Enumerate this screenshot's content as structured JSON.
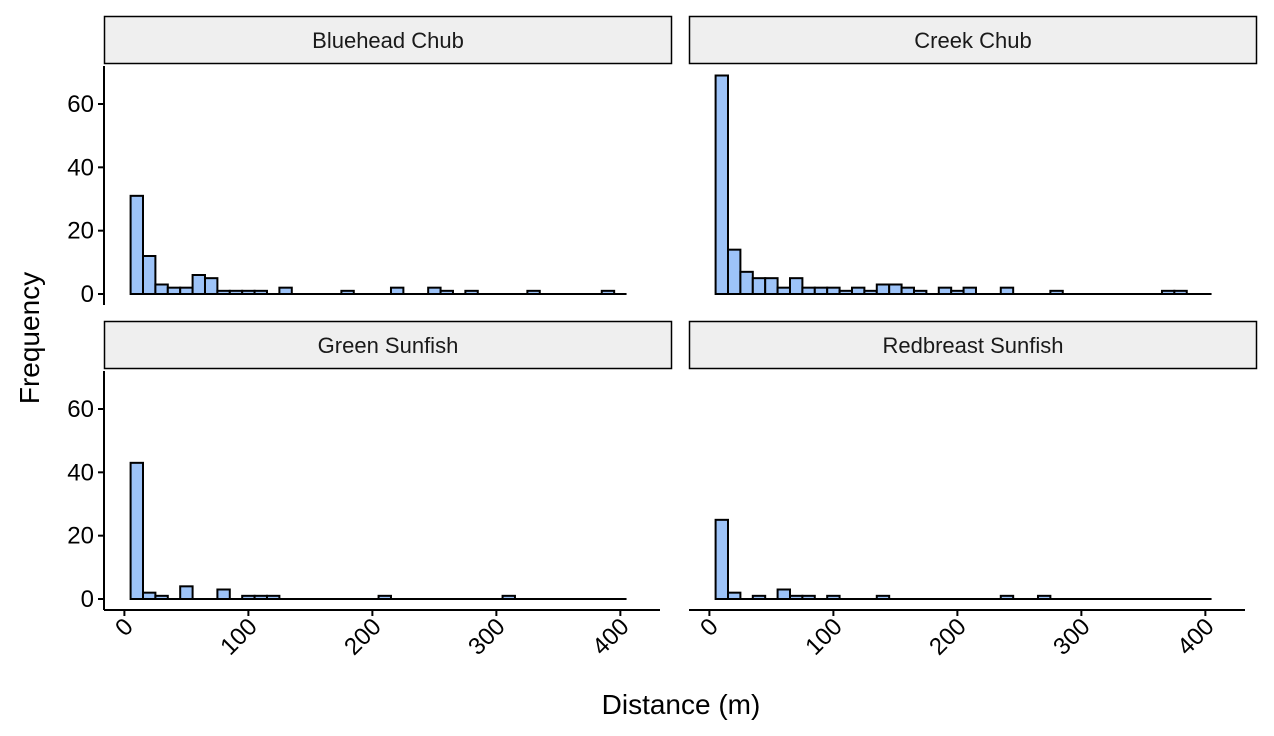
{
  "chart_data": {
    "type": "bar",
    "subtype": "faceted-histogram",
    "xlabel": "Distance (m)",
    "ylabel": "Frequency",
    "xlim": [
      -10,
      400
    ],
    "ylim": [
      0,
      72
    ],
    "x_ticks": [
      0,
      100,
      200,
      300,
      400
    ],
    "y_ticks": [
      0,
      20,
      40,
      60
    ],
    "bin_width": 10,
    "bar_fill": "#9dc3f8",
    "bar_stroke": "#000000",
    "strip_fill": "#efefef",
    "panels": [
      {
        "title": "Bluehead Chub",
        "bins": [
          {
            "x": 10,
            "count": 31
          },
          {
            "x": 20,
            "count": 12
          },
          {
            "x": 30,
            "count": 3
          },
          {
            "x": 40,
            "count": 2
          },
          {
            "x": 50,
            "count": 2
          },
          {
            "x": 60,
            "count": 6
          },
          {
            "x": 70,
            "count": 5
          },
          {
            "x": 80,
            "count": 1
          },
          {
            "x": 90,
            "count": 1
          },
          {
            "x": 100,
            "count": 1
          },
          {
            "x": 110,
            "count": 1
          },
          {
            "x": 130,
            "count": 2
          },
          {
            "x": 180,
            "count": 1
          },
          {
            "x": 220,
            "count": 2
          },
          {
            "x": 250,
            "count": 2
          },
          {
            "x": 260,
            "count": 1
          },
          {
            "x": 280,
            "count": 1
          },
          {
            "x": 330,
            "count": 1
          },
          {
            "x": 390,
            "count": 1
          }
        ]
      },
      {
        "title": "Creek Chub",
        "bins": [
          {
            "x": 10,
            "count": 69
          },
          {
            "x": 20,
            "count": 14
          },
          {
            "x": 30,
            "count": 7
          },
          {
            "x": 40,
            "count": 5
          },
          {
            "x": 50,
            "count": 5
          },
          {
            "x": 60,
            "count": 2
          },
          {
            "x": 70,
            "count": 5
          },
          {
            "x": 80,
            "count": 2
          },
          {
            "x": 90,
            "count": 2
          },
          {
            "x": 100,
            "count": 2
          },
          {
            "x": 110,
            "count": 1
          },
          {
            "x": 120,
            "count": 2
          },
          {
            "x": 130,
            "count": 1
          },
          {
            "x": 140,
            "count": 3
          },
          {
            "x": 150,
            "count": 3
          },
          {
            "x": 160,
            "count": 2
          },
          {
            "x": 170,
            "count": 1
          },
          {
            "x": 190,
            "count": 2
          },
          {
            "x": 200,
            "count": 1
          },
          {
            "x": 210,
            "count": 2
          },
          {
            "x": 240,
            "count": 2
          },
          {
            "x": 280,
            "count": 1
          },
          {
            "x": 370,
            "count": 1
          },
          {
            "x": 380,
            "count": 1
          }
        ]
      },
      {
        "title": "Green Sunfish",
        "bins": [
          {
            "x": 10,
            "count": 43
          },
          {
            "x": 20,
            "count": 2
          },
          {
            "x": 30,
            "count": 1
          },
          {
            "x": 50,
            "count": 4
          },
          {
            "x": 80,
            "count": 3
          },
          {
            "x": 100,
            "count": 1
          },
          {
            "x": 110,
            "count": 1
          },
          {
            "x": 120,
            "count": 1
          },
          {
            "x": 210,
            "count": 1
          },
          {
            "x": 310,
            "count": 1
          }
        ]
      },
      {
        "title": "Redbreast Sunfish",
        "bins": [
          {
            "x": 10,
            "count": 25
          },
          {
            "x": 20,
            "count": 2
          },
          {
            "x": 40,
            "count": 1
          },
          {
            "x": 60,
            "count": 3
          },
          {
            "x": 70,
            "count": 1
          },
          {
            "x": 80,
            "count": 1
          },
          {
            "x": 100,
            "count": 1
          },
          {
            "x": 140,
            "count": 1
          },
          {
            "x": 240,
            "count": 1
          },
          {
            "x": 270,
            "count": 1
          }
        ]
      }
    ]
  }
}
